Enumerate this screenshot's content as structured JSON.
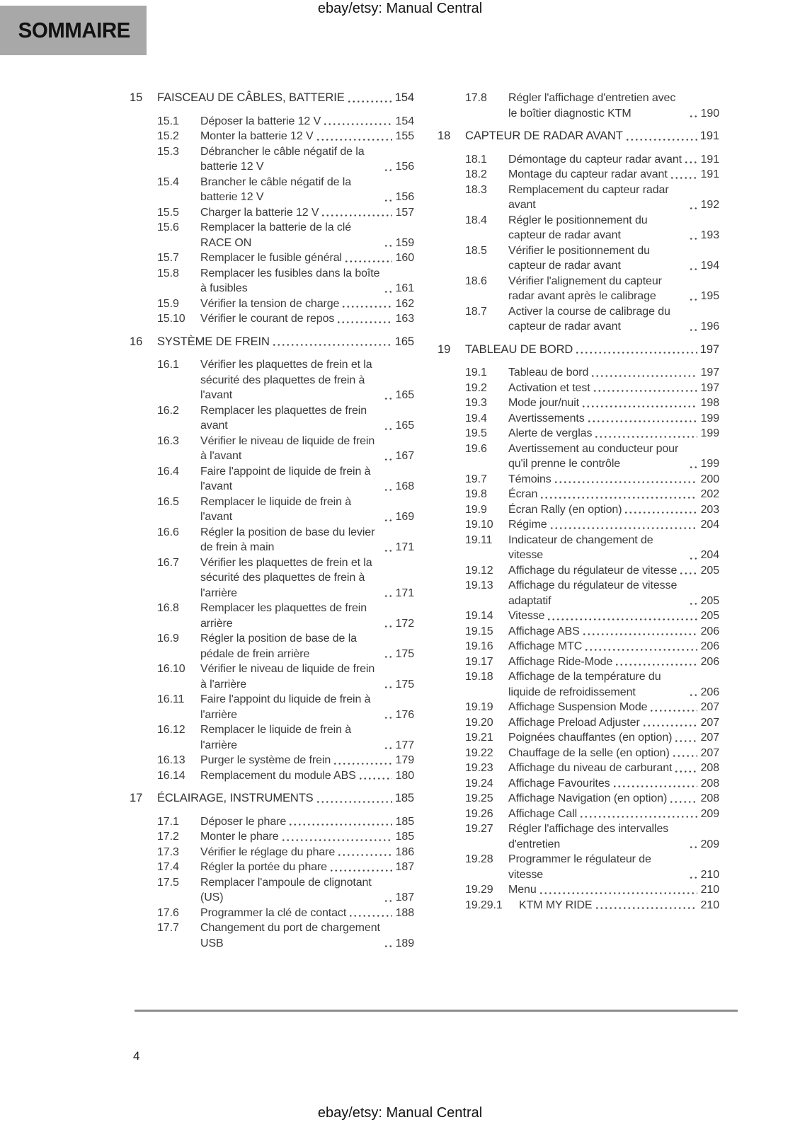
{
  "header": {
    "title": "ebay/etsy: Manual Central"
  },
  "footer": {
    "title": "ebay/etsy: Manual Central"
  },
  "sommaire_label": "SOMMAIRE",
  "page_number": "4",
  "columns": [
    {
      "entries": [
        {
          "level": "chapter",
          "num": "15",
          "title": "FAISCEAU DE CÂBLES, BATTERIE",
          "page": "154"
        },
        {
          "level": "section",
          "num": "15.1",
          "title": "Déposer la batterie 12 V",
          "page": "154"
        },
        {
          "level": "section",
          "num": "15.2",
          "title": "Monter la batterie 12 V",
          "page": "155"
        },
        {
          "level": "section",
          "num": "15.3",
          "title": "Débrancher le câble négatif de la batterie 12 V",
          "page": "156"
        },
        {
          "level": "section",
          "num": "15.4",
          "title": "Brancher le câble négatif de la batterie 12 V",
          "page": "156"
        },
        {
          "level": "section",
          "num": "15.5",
          "title": "Charger la batterie 12 V",
          "page": "157"
        },
        {
          "level": "section",
          "num": "15.6",
          "title": "Remplacer la batterie de la clé RACE ON",
          "page": "159"
        },
        {
          "level": "section",
          "num": "15.7",
          "title": "Remplacer le fusible général",
          "page": "160"
        },
        {
          "level": "section",
          "num": "15.8",
          "title": "Remplacer les fusibles dans la boîte à fusibles",
          "page": "161"
        },
        {
          "level": "section",
          "num": "15.9",
          "title": "Vérifier la tension de charge",
          "page": "162"
        },
        {
          "level": "section",
          "num": "15.10",
          "title": "Vérifier le courant de repos",
          "page": "163"
        },
        {
          "level": "chapter",
          "num": "16",
          "title": "SYSTÈME DE FREIN",
          "page": "165"
        },
        {
          "level": "section",
          "num": "16.1",
          "title": "Vérifier les plaquettes de frein et la sécurité des plaquettes de frein à l'avant",
          "page": "165"
        },
        {
          "level": "section",
          "num": "16.2",
          "title": "Remplacer les plaquettes de frein avant",
          "page": "165"
        },
        {
          "level": "section",
          "num": "16.3",
          "title": "Vérifier le niveau de liquide de frein à l'avant",
          "page": "167"
        },
        {
          "level": "section",
          "num": "16.4",
          "title": "Faire l'appoint de liquide de frein à l'avant",
          "page": "168"
        },
        {
          "level": "section",
          "num": "16.5",
          "title": "Remplacer le liquide de frein à l'avant",
          "page": "169"
        },
        {
          "level": "section",
          "num": "16.6",
          "title": "Régler la position de base du levier de frein à main",
          "page": "171"
        },
        {
          "level": "section",
          "num": "16.7",
          "title": "Vérifier les plaquettes de frein et la sécurité des plaquettes de frein à l'arrière",
          "page": "171"
        },
        {
          "level": "section",
          "num": "16.8",
          "title": "Remplacer les plaquettes de frein arrière",
          "page": "172"
        },
        {
          "level": "section",
          "num": "16.9",
          "title": "Régler la position de base de la pédale de frein arrière",
          "page": "175"
        },
        {
          "level": "section",
          "num": "16.10",
          "title": "Vérifier le niveau de liquide de frein à l'arrière",
          "page": "175"
        },
        {
          "level": "section",
          "num": "16.11",
          "title": "Faire l'appoint du liquide de frein à l'arrière",
          "page": "176"
        },
        {
          "level": "section",
          "num": "16.12",
          "title": "Remplacer le liquide de frein à l'arrière",
          "page": "177"
        },
        {
          "level": "section",
          "num": "16.13",
          "title": "Purger le système de frein",
          "page": "179"
        },
        {
          "level": "section",
          "num": "16.14",
          "title": "Remplacement du module ABS",
          "page": "180"
        },
        {
          "level": "chapter",
          "num": "17",
          "title": "ÉCLAIRAGE, INSTRUMENTS",
          "page": "185"
        },
        {
          "level": "section",
          "num": "17.1",
          "title": "Déposer le phare",
          "page": "185"
        },
        {
          "level": "section",
          "num": "17.2",
          "title": "Monter le phare",
          "page": "185"
        },
        {
          "level": "section",
          "num": "17.3",
          "title": "Vérifier le réglage du phare",
          "page": "186"
        },
        {
          "level": "section",
          "num": "17.4",
          "title": "Régler la portée du phare",
          "page": "187"
        },
        {
          "level": "section",
          "num": "17.5",
          "title": "Remplacer l'ampoule de clignotant (US)",
          "page": "187"
        },
        {
          "level": "section",
          "num": "17.6",
          "title": "Programmer la clé de contact",
          "page": "188"
        },
        {
          "level": "section",
          "num": "17.7",
          "title": "Changement du port de chargement USB",
          "page": "189"
        }
      ]
    },
    {
      "entries": [
        {
          "level": "section",
          "num": "17.8",
          "title": "Régler l'affichage d'entretien avec le boîtier diagnostic KTM",
          "page": "190"
        },
        {
          "level": "chapter",
          "num": "18",
          "title": "CAPTEUR DE RADAR AVANT",
          "page": "191"
        },
        {
          "level": "section",
          "num": "18.1",
          "title": "Démontage du capteur radar avant",
          "page": "191"
        },
        {
          "level": "section",
          "num": "18.2",
          "title": "Montage du capteur radar avant",
          "page": "191"
        },
        {
          "level": "section",
          "num": "18.3",
          "title": "Remplacement du capteur radar avant",
          "page": "192"
        },
        {
          "level": "section",
          "num": "18.4",
          "title": "Régler le positionnement du capteur de radar avant",
          "page": "193"
        },
        {
          "level": "section",
          "num": "18.5",
          "title": "Vérifier le positionnement du capteur de radar avant",
          "page": "194"
        },
        {
          "level": "section",
          "num": "18.6",
          "title": "Vérifier l'alignement du capteur radar avant après le calibrage",
          "page": "195"
        },
        {
          "level": "section",
          "num": "18.7",
          "title": "Activer la course de calibrage du capteur de radar avant",
          "page": "196"
        },
        {
          "level": "chapter",
          "num": "19",
          "title": "TABLEAU DE BORD",
          "page": "197"
        },
        {
          "level": "section",
          "num": "19.1",
          "title": "Tableau de bord",
          "page": "197"
        },
        {
          "level": "section",
          "num": "19.2",
          "title": "Activation et test",
          "page": "197"
        },
        {
          "level": "section",
          "num": "19.3",
          "title": "Mode jour/nuit",
          "page": "198"
        },
        {
          "level": "section",
          "num": "19.4",
          "title": "Avertissements",
          "page": "199"
        },
        {
          "level": "section",
          "num": "19.5",
          "title": "Alerte de verglas",
          "page": "199"
        },
        {
          "level": "section",
          "num": "19.6",
          "title": "Avertissement au conducteur pour qu'il prenne le contrôle",
          "page": "199"
        },
        {
          "level": "section",
          "num": "19.7",
          "title": "Témoins",
          "page": "200"
        },
        {
          "level": "section",
          "num": "19.8",
          "title": "Écran",
          "page": "202"
        },
        {
          "level": "section",
          "num": "19.9",
          "title": "Écran Rally (en option)",
          "page": "203"
        },
        {
          "level": "section",
          "num": "19.10",
          "title": "Régime",
          "page": "204"
        },
        {
          "level": "section",
          "num": "19.11",
          "title": "Indicateur de changement de vitesse",
          "page": "204"
        },
        {
          "level": "section",
          "num": "19.12",
          "title": "Affichage du régulateur de vitesse",
          "page": "205"
        },
        {
          "level": "section",
          "num": "19.13",
          "title": "Affichage du régulateur de vitesse adaptatif",
          "page": "205"
        },
        {
          "level": "section",
          "num": "19.14",
          "title": "Vitesse",
          "page": "205"
        },
        {
          "level": "section",
          "num": "19.15",
          "title": "Affichage ABS",
          "page": "206"
        },
        {
          "level": "section",
          "num": "19.16",
          "title": "Affichage MTC",
          "page": "206"
        },
        {
          "level": "section",
          "num": "19.17",
          "title": "Affichage Ride-Mode",
          "page": "206"
        },
        {
          "level": "section",
          "num": "19.18",
          "title": "Affichage de la température du liquide de refroidissement",
          "page": "206"
        },
        {
          "level": "section",
          "num": "19.19",
          "title": "Affichage Suspension Mode",
          "page": "207"
        },
        {
          "level": "section",
          "num": "19.20",
          "title": "Affichage Preload Adjuster",
          "page": "207"
        },
        {
          "level": "section",
          "num": "19.21",
          "title": "Poignées chauffantes (en option)",
          "page": "207"
        },
        {
          "level": "section",
          "num": "19.22",
          "title": "Chauffage de la selle (en option)",
          "page": "207"
        },
        {
          "level": "section",
          "num": "19.23",
          "title": "Affichage du niveau de carburant",
          "page": "208"
        },
        {
          "level": "section",
          "num": "19.24",
          "title": "Affichage Favourites",
          "page": "208"
        },
        {
          "level": "section",
          "num": "19.25",
          "title": "Affichage Navigation (en option)",
          "page": "208"
        },
        {
          "level": "section",
          "num": "19.26",
          "title": "Affichage Call",
          "page": "209"
        },
        {
          "level": "section",
          "num": "19.27",
          "title": "Régler l'affichage des intervalles d'entretien",
          "page": "209"
        },
        {
          "level": "section",
          "num": "19.28",
          "title": "Programmer le régulateur de vitesse",
          "page": "210"
        },
        {
          "level": "section",
          "num": "19.29",
          "title": "Menu",
          "page": "210"
        },
        {
          "level": "subsection",
          "num": "19.29.1",
          "title": "KTM MY RIDE",
          "page": "210"
        }
      ]
    }
  ]
}
